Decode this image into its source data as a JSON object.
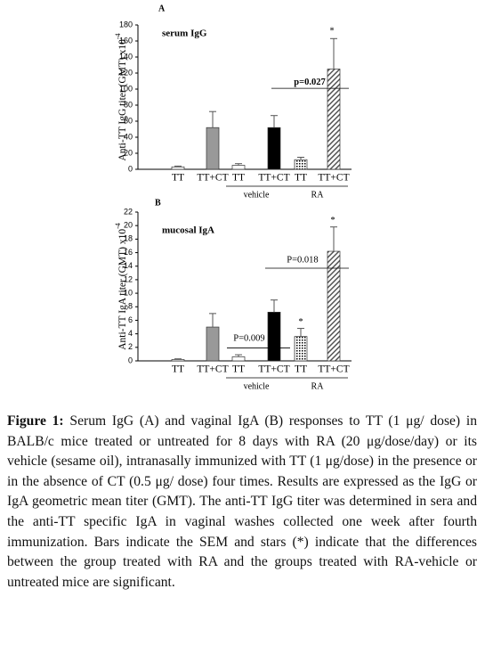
{
  "chart_data": [
    {
      "type": "bar",
      "panel_label": "A",
      "subtitle": "serum IgG",
      "ylabel": "Anti-TT IgG titer (GMT) x10",
      "ylabel_exponent": "-4",
      "categories": [
        "TT",
        "TT+CT",
        "TT",
        "TT+CT",
        "TT",
        "TT+CT"
      ],
      "group_labels": [
        "vehicle",
        "RA"
      ],
      "values": [
        3,
        52,
        5,
        52,
        12,
        125
      ],
      "errors": [
        1,
        20,
        2,
        15,
        3,
        38
      ],
      "colors": [
        "#ffffff",
        "#999999",
        "#ffffff",
        "#000000",
        "#bbbbbb",
        "#dddddd"
      ],
      "patterns": [
        "solid",
        "solid",
        "solid",
        "solid",
        "dots",
        "hatch"
      ],
      "annotations": [
        "p=0.027",
        "*"
      ],
      "ylim": [
        0,
        180
      ],
      "yticks": [
        0,
        20,
        40,
        60,
        80,
        100,
        120,
        140,
        160,
        180
      ]
    },
    {
      "type": "bar",
      "panel_label": "B",
      "subtitle": "mucosal IgA",
      "ylabel": "Anti-TT IgA titer (GMT) x10",
      "ylabel_exponent": "-4",
      "categories": [
        "TT",
        "TT+CT",
        "TT",
        "TT+CT",
        "TT",
        "TT+CT"
      ],
      "group_labels": [
        "vehicle",
        "RA"
      ],
      "values": [
        0.2,
        5,
        0.6,
        7.2,
        3.6,
        16.2
      ],
      "errors": [
        0.1,
        2,
        0.3,
        1.8,
        1.2,
        3.6
      ],
      "colors": [
        "#ffffff",
        "#999999",
        "#ffffff",
        "#000000",
        "#bbbbbb",
        "#dddddd"
      ],
      "patterns": [
        "solid",
        "solid",
        "solid",
        "solid",
        "dots",
        "hatch"
      ],
      "annotations": [
        "P=0.009",
        "P=0.018",
        "*",
        "*"
      ],
      "ylim": [
        0,
        22
      ],
      "yticks": [
        0,
        2,
        4,
        6,
        8,
        10,
        12,
        14,
        16,
        18,
        20,
        22
      ]
    }
  ],
  "caption_label": "Figure 1:",
  "caption_text": "Serum IgG (A) and vaginal IgA (B) responses to TT (1 μg/ dose) in BALB/c mice treated or untreated for 8 days with RA (20 μg/dose/day) or its vehicle (sesame oil), intranasally immunized with TT (1 μg/dose) in the presence or in the absence of CT (0.5 μg/ dose) four times. Results are expressed as the IgG or IgA geometric mean titer (GMT). The anti-TT IgG titer was determined in sera and the anti-TT specific IgA in vaginal washes collected one week after fourth immunization. Bars indicate the SEM and stars (*) indicate that the differences between the group treated with RA and the groups treated with RA-vehicle or untreated mice are significant."
}
